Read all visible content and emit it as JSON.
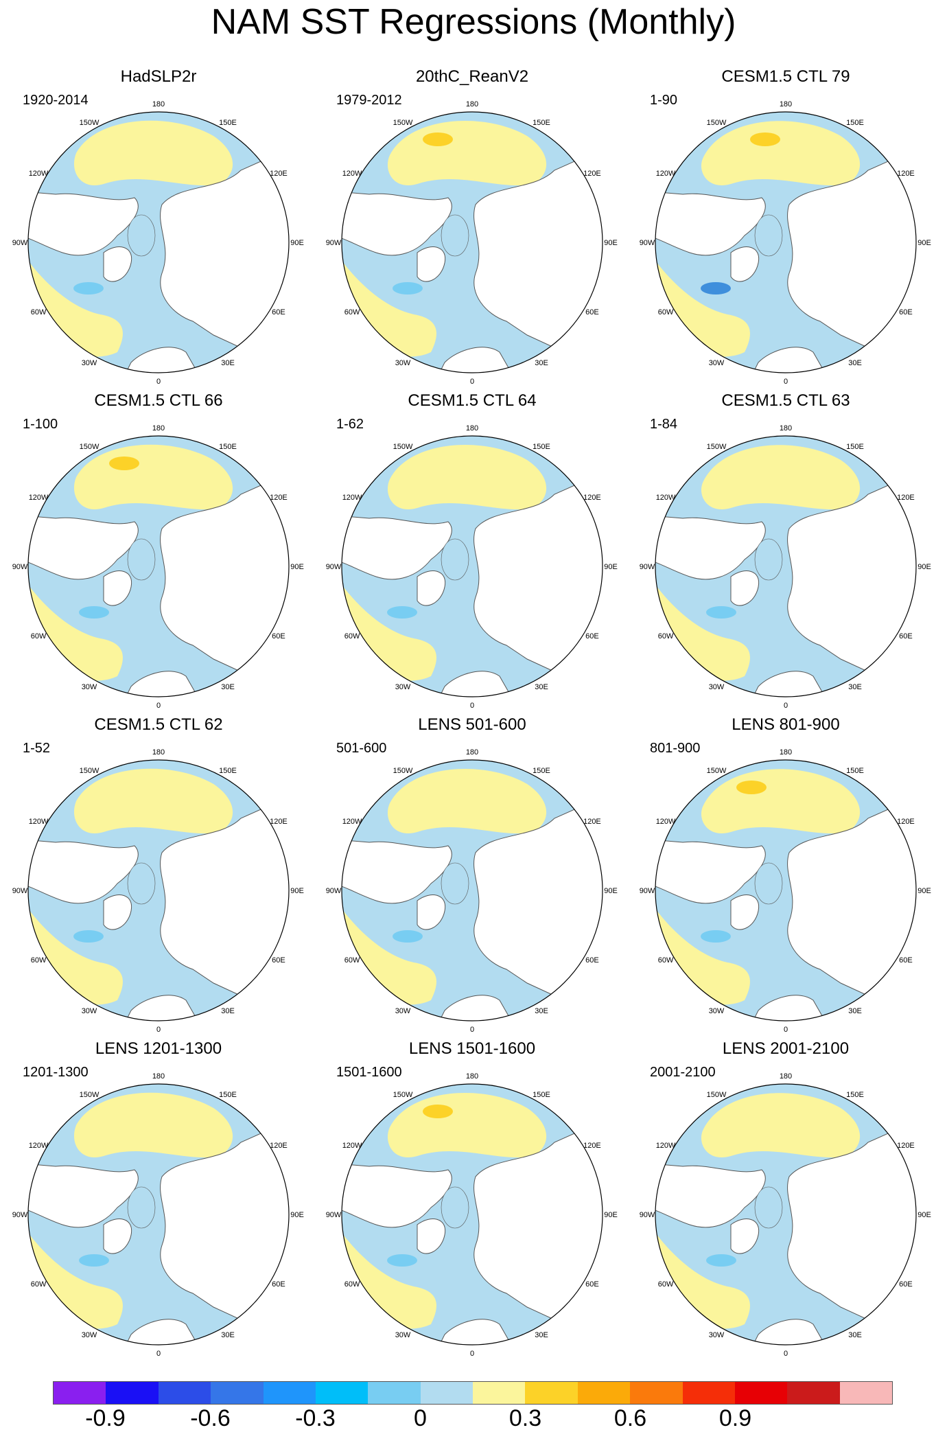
{
  "title": "NAM SST Regressions (Monthly)",
  "longitude_labels": [
    "180",
    "150E",
    "120E",
    "90E",
    "60E",
    "30E",
    "0",
    "30W",
    "60W",
    "90W",
    "120W",
    "150W"
  ],
  "panels": [
    {
      "title": "HadSLP2r",
      "period": "1920-2014"
    },
    {
      "title": "20thC_ReanV2",
      "period": "1979-2012"
    },
    {
      "title": "CESM1.5 CTL 79",
      "period": "1-90"
    },
    {
      "title": "CESM1.5 CTL 66",
      "period": "1-100"
    },
    {
      "title": "CESM1.5 CTL 64",
      "period": "1-62"
    },
    {
      "title": "CESM1.5 CTL 63",
      "period": "1-84"
    },
    {
      "title": "CESM1.5 CTL 62",
      "period": "1-52"
    },
    {
      "title": "LENS 501-600",
      "period": "501-600"
    },
    {
      "title": "LENS 801-900",
      "period": "801-900"
    },
    {
      "title": "LENS 1201-1300",
      "period": "1201-1300"
    },
    {
      "title": "LENS 1501-1600",
      "period": "1501-1600"
    },
    {
      "title": "LENS 2001-2100",
      "period": "2001-2100"
    }
  ],
  "colorbar": {
    "colors": [
      "#8a1fef",
      "#1a10f5",
      "#2c4de8",
      "#3576e8",
      "#1f95fb",
      "#00bef9",
      "#78cdf2",
      "#b2dcf0",
      "#fbf59c",
      "#fcd228",
      "#fbaa09",
      "#fa7a0c",
      "#f52e08",
      "#e70005",
      "#cb1b1b",
      "#f8b8b8"
    ],
    "labels": [
      "-0.9",
      "-0.6",
      "-0.3",
      "0",
      "0.3",
      "0.6",
      "0.9"
    ]
  },
  "colors": {
    "negative_weak": "#b2dcf0",
    "negative_mid": "#78cdf2",
    "negative_strong": "#3f8fdc",
    "positive_weak": "#fbf59c",
    "positive_mid": "#fcd228",
    "land": "#ffffff",
    "coast": "#555555"
  }
}
